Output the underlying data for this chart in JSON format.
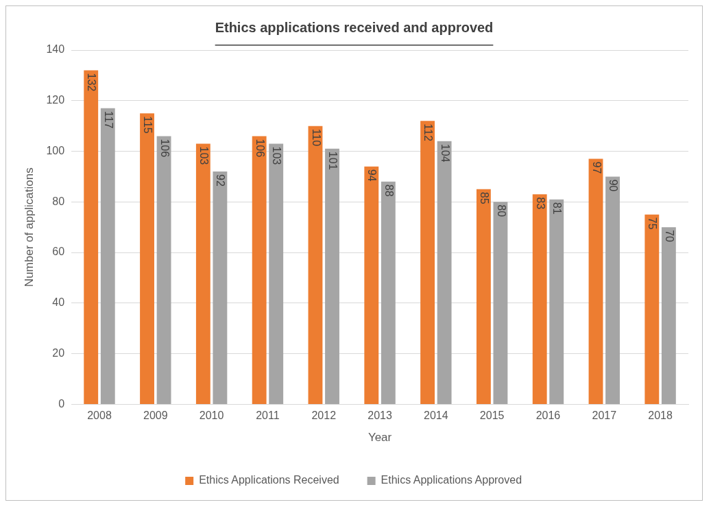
{
  "chart_data": {
    "type": "bar",
    "title": "Ethics applications received and approved",
    "xlabel": "Year",
    "ylabel": "Number of applications",
    "categories": [
      "2008",
      "2009",
      "2010",
      "2011",
      "2012",
      "2013",
      "2014",
      "2015",
      "2016",
      "2017",
      "2018"
    ],
    "series": [
      {
        "name": "Ethics Applications Received",
        "color": "#ed7d31",
        "values": [
          132,
          115,
          103,
          106,
          110,
          94,
          112,
          85,
          83,
          97,
          75
        ]
      },
      {
        "name": "Ethics Applications Approved",
        "color": "#a5a5a5",
        "values": [
          117,
          106,
          92,
          103,
          101,
          88,
          104,
          80,
          81,
          90,
          70
        ]
      }
    ],
    "ylim": [
      0,
      140
    ],
    "yticks": [
      0,
      20,
      40,
      60,
      80,
      100,
      120,
      140
    ],
    "grid": "y",
    "legend": "bottom",
    "data_labels": true
  }
}
